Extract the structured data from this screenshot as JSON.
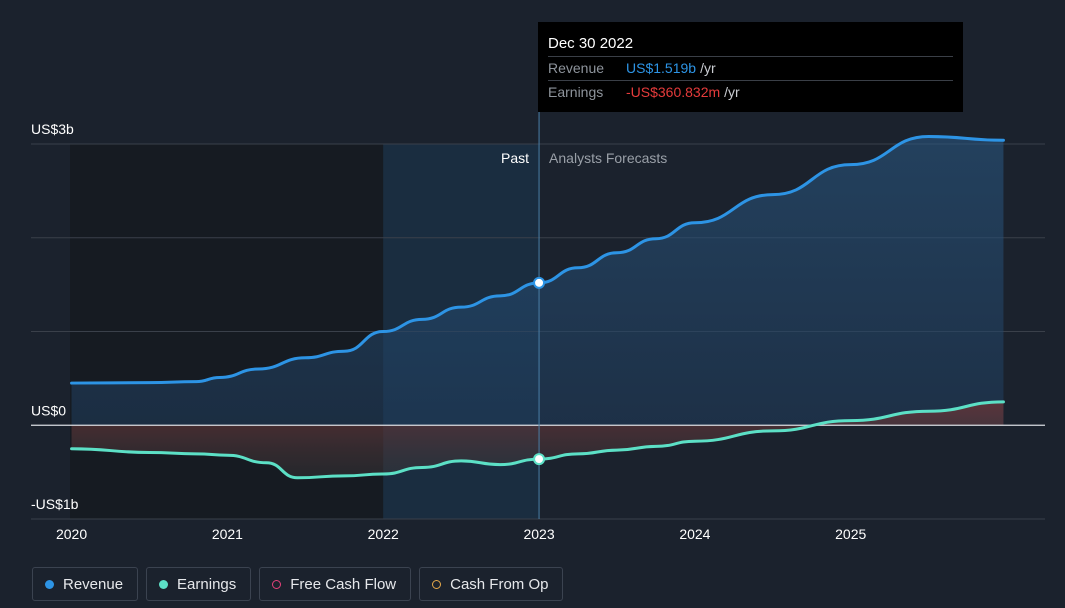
{
  "chart_data": {
    "type": "area",
    "x_ticks": [
      "2020",
      "2021",
      "2022",
      "2023",
      "2024",
      "2025"
    ],
    "y_labels": [
      {
        "label": "US$3b",
        "value": 3000
      },
      {
        "label": "US$0",
        "value": 0
      },
      {
        "label": "-US$1b",
        "value": -1000
      }
    ],
    "ylim": [
      -1000,
      3000
    ],
    "xlim": [
      2019.99,
      2025.99
    ],
    "past_label": "Past",
    "forecast_label": "Analysts Forecasts",
    "divider_year": 2023.0,
    "highlight_start": 2022.0,
    "series": [
      {
        "name": "Revenue",
        "color": "#2d94e5",
        "unit": "US$m",
        "points": [
          [
            2020.0,
            450
          ],
          [
            2020.5,
            455
          ],
          [
            2020.8,
            465
          ],
          [
            2020.95,
            510
          ],
          [
            2021.2,
            600
          ],
          [
            2021.5,
            720
          ],
          [
            2021.75,
            790
          ],
          [
            2022.0,
            1000
          ],
          [
            2022.25,
            1130
          ],
          [
            2022.5,
            1260
          ],
          [
            2022.75,
            1380
          ],
          [
            2023.0,
            1519
          ],
          [
            2023.25,
            1680
          ],
          [
            2023.5,
            1840
          ],
          [
            2023.75,
            1990
          ],
          [
            2024.0,
            2160
          ],
          [
            2024.5,
            2460
          ],
          [
            2025.0,
            2780
          ],
          [
            2025.5,
            3080
          ],
          [
            2025.98,
            2880
          ]
        ]
      },
      {
        "name": "Earnings",
        "color": "#5ce0c6",
        "unit": "US$m",
        "points": [
          [
            2020.0,
            -250
          ],
          [
            2020.5,
            -290
          ],
          [
            2020.8,
            -305
          ],
          [
            2021.0,
            -320
          ],
          [
            2021.25,
            -400
          ],
          [
            2021.45,
            -560
          ],
          [
            2021.75,
            -540
          ],
          [
            2022.0,
            -520
          ],
          [
            2022.25,
            -450
          ],
          [
            2022.5,
            -380
          ],
          [
            2022.75,
            -420
          ],
          [
            2023.0,
            -361
          ],
          [
            2023.25,
            -305
          ],
          [
            2023.5,
            -265
          ],
          [
            2023.75,
            -225
          ],
          [
            2024.0,
            -170
          ],
          [
            2024.5,
            -60
          ],
          [
            2025.0,
            50
          ],
          [
            2025.5,
            150
          ],
          [
            2025.98,
            250
          ]
        ]
      }
    ],
    "highlight_point": {
      "x": 2023.0,
      "revenue": 1519,
      "earnings": -360.832
    }
  },
  "tooltip": {
    "date": "Dec 30 2022",
    "revenue_label": "Revenue",
    "revenue_value": "US$1.519b",
    "revenue_unit": "/yr",
    "earnings_label": "Earnings",
    "earnings_value": "-US$360.832m",
    "earnings_unit": "/yr"
  },
  "legend": [
    {
      "label": "Revenue",
      "color": "#2d94e5",
      "filled": true
    },
    {
      "label": "Earnings",
      "color": "#5ce0c6",
      "filled": true
    },
    {
      "label": "Free Cash Flow",
      "color": "#e5417a",
      "filled": false
    },
    {
      "label": "Cash From Op",
      "color": "#e5a84a",
      "filled": false
    }
  ]
}
